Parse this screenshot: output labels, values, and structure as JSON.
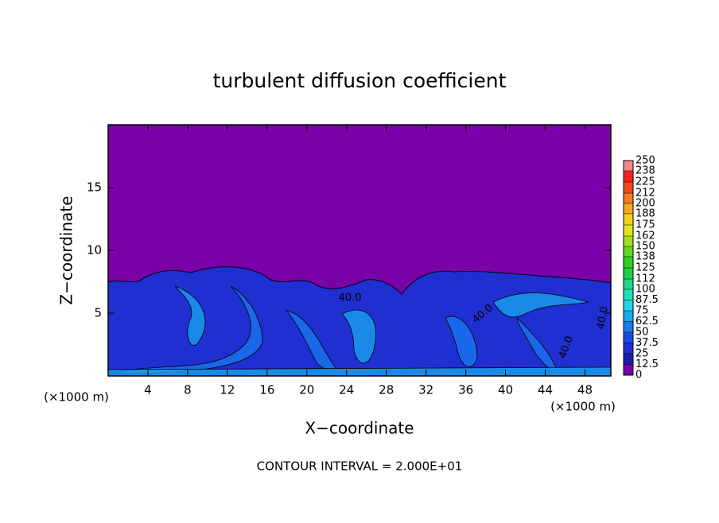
{
  "chart_data": {
    "type": "contour",
    "title": "turbulent diffusion coefficient",
    "x_label": "X−coordinate",
    "y_label": "Z−coordinate",
    "x_unit": "(×1000 m)",
    "y_unit": "(×1000 m)",
    "footer": "CONTOUR INTERVAL = 2.000E+01",
    "xlim": [
      0,
      50.6
    ],
    "xticks": [
      4,
      8,
      12,
      16,
      20,
      24,
      28,
      32,
      36,
      40,
      44,
      48
    ],
    "ylim": [
      0,
      20
    ],
    "yticks": [
      5,
      10,
      15
    ],
    "background_color": "#7a00a8",
    "contour_labels": [
      "40.0",
      "40.0",
      "40.0",
      "40.0"
    ],
    "colorbar": {
      "ticks": [
        0,
        12.5,
        25,
        37.5,
        50,
        62.5,
        75,
        87.5,
        100,
        112,
        125,
        138,
        150,
        162,
        175,
        188,
        200,
        212,
        225,
        238,
        250
      ],
      "colors": [
        "#7a00a8",
        "#1c1cb0",
        "#1f2fd2",
        "#1a4ce8",
        "#1a7cf0",
        "#1aaaf0",
        "#20d4e6",
        "#20e0b8",
        "#20d888",
        "#20d048",
        "#34d020",
        "#64d820",
        "#a4e020",
        "#e4e420",
        "#f4d020",
        "#f4a820",
        "#f47820",
        "#f44820",
        "#f42020",
        "#f48888"
      ]
    }
  }
}
